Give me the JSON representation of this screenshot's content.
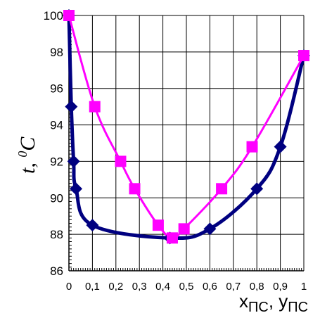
{
  "chart_data": {
    "type": "line",
    "xlim": [
      0,
      1
    ],
    "ylim": [
      86,
      100
    ],
    "x_tick_labels": [
      "0",
      "0,1",
      "0,2",
      "0,3",
      "0,4",
      "0,5",
      "0,6",
      "0,7",
      "0,8",
      "0,9",
      "1"
    ],
    "y_tick_labels": [
      "86",
      "88",
      "90",
      "92",
      "94",
      "96",
      "98",
      "100"
    ],
    "ylabel": {
      "main": "t, ",
      "sup": "0",
      "unit": "C"
    },
    "xlabel": {
      "x": "x",
      "x_sub": "ПС",
      "sep": ", ",
      "y": "y",
      "y_sub": "ПС"
    },
    "grid": true,
    "series": [
      {
        "marker": "diamond",
        "color": "#000080",
        "x": [
          0,
          0.01,
          0.02,
          0.03,
          0.1,
          0.43,
          0.6,
          0.8,
          0.9,
          1
        ],
        "y": [
          100,
          95,
          92,
          90.5,
          88.5,
          87.8,
          88.3,
          90.5,
          92.8,
          97.8
        ]
      },
      {
        "marker": "square",
        "color": "#ff00ff",
        "x": [
          0,
          0.11,
          0.22,
          0.28,
          0.38,
          0.44,
          0.49,
          0.65,
          0.78,
          1
        ],
        "y": [
          100,
          95,
          92,
          90.5,
          88.5,
          87.8,
          88.3,
          90.5,
          92.8,
          97.8
        ]
      }
    ]
  }
}
